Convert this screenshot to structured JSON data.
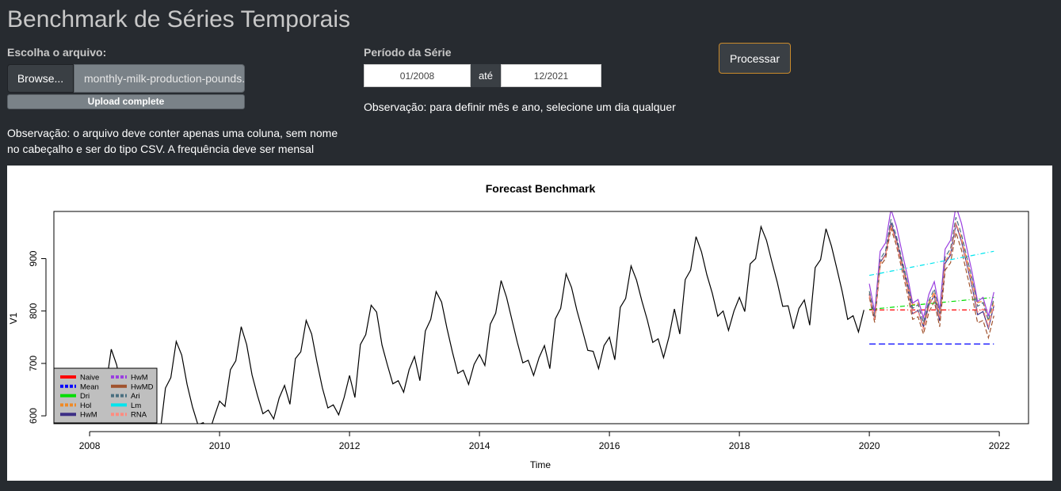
{
  "app": {
    "title": "Benchmark de Séries Temporais"
  },
  "upload": {
    "label": "Escolha o arquivo:",
    "browse_label": "Browse...",
    "file_name": "monthly-milk-production-pounds.csv",
    "progress_text": "Upload complete",
    "progress_fraction": 1.0,
    "note_line1": "Observação: o arquivo deve conter apenas uma coluna, sem nome",
    "note_line2": "no cabeçalho e ser do tipo CSV. A frequência deve ser mensal"
  },
  "period": {
    "label": "Período da Série",
    "start": "01/2008",
    "separator": "até",
    "end": "12/2021",
    "note": "Observação: para definir mês e ano, selecione um dia qualquer"
  },
  "actions": {
    "process_label": "Processar"
  },
  "colors": {
    "background": "#272b30",
    "panel": "#ffffff",
    "button_border": "#c98a2b",
    "naive": "#ff0000",
    "mean": "#0000ff",
    "drift": "#00dd00",
    "holt": "#f08a24",
    "hw": "#3d2f85",
    "hwm": "#9a3fe0",
    "hwmd": "#a0522d",
    "arima": "#4a6f80",
    "lm": "#00e5ee",
    "rna": "#ff8c80"
  },
  "chart_data": {
    "type": "line",
    "title": "Forecast Benchmark",
    "xlabel": "Time",
    "ylabel": "V1",
    "xlim": [
      2007.45,
      2022.45
    ],
    "ylim": [
      585,
      990
    ],
    "x_ticks": [
      2008,
      2010,
      2012,
      2014,
      2016,
      2018,
      2020,
      2022
    ],
    "y_ticks": [
      600,
      700,
      800,
      900
    ],
    "grid": false,
    "legend_position": "bottom-left",
    "start": 2008.0,
    "frequency": 12,
    "historical": [
      589,
      561,
      640,
      656,
      727,
      697,
      640,
      599,
      568,
      577,
      553,
      582,
      600,
      566,
      653,
      673,
      742,
      716,
      660,
      617,
      583,
      587,
      565,
      598,
      628,
      618,
      688,
      705,
      770,
      736,
      678,
      639,
      604,
      611,
      594,
      634,
      658,
      622,
      709,
      722,
      782,
      756,
      702,
      653,
      615,
      621,
      602,
      635,
      677,
      635,
      736,
      755,
      811,
      798,
      735,
      697,
      661,
      667,
      645,
      688,
      713,
      667,
      762,
      784,
      837,
      817,
      767,
      722,
      681,
      687,
      660,
      698,
      717,
      696,
      775,
      796,
      858,
      826,
      783,
      740,
      701,
      706,
      677,
      711,
      734,
      690,
      785,
      805,
      871,
      845,
      801,
      764,
      725,
      723,
      690,
      734,
      750,
      707,
      807,
      824,
      886,
      859,
      819,
      783,
      740,
      747,
      711,
      751,
      804,
      756,
      860,
      878,
      942,
      913,
      869,
      834,
      790,
      800,
      763,
      800,
      826,
      799,
      890,
      900,
      961,
      935,
      894,
      855,
      809,
      810,
      766,
      805,
      821,
      773,
      883,
      898,
      957,
      924,
      881,
      837,
      784,
      791,
      760,
      802
    ],
    "forecast_x": [
      2020.0,
      2020.0833,
      2020.1667,
      2020.25,
      2020.3333,
      2020.4167,
      2020.5,
      2020.5833,
      2020.6667,
      2020.75,
      2020.8333,
      2020.9167,
      2021.0,
      2021.0833,
      2021.1667,
      2021.25,
      2021.3333,
      2021.4167,
      2021.5,
      2021.5833,
      2021.6667,
      2021.75,
      2021.8333,
      2021.9167
    ],
    "series": [
      {
        "name": "Naive",
        "color": "#ff0000",
        "dash": "6,3,1,3",
        "values": [
          802,
          802,
          802,
          802,
          802,
          802,
          802,
          802,
          802,
          802,
          802,
          802,
          802,
          802,
          802,
          802,
          802,
          802,
          802,
          802,
          802,
          802,
          802,
          802
        ]
      },
      {
        "name": "Mean",
        "color": "#0000ff",
        "dash": "8,4",
        "values": [
          737,
          737,
          737,
          737,
          737,
          737,
          737,
          737,
          737,
          737,
          737,
          737,
          737,
          737,
          737,
          737,
          737,
          737,
          737,
          737,
          737,
          737,
          737,
          737
        ]
      },
      {
        "name": "Dri",
        "color": "#00dd00",
        "dash": "6,3,1,3",
        "values": [
          803,
          804,
          805,
          806,
          807,
          808,
          809,
          810,
          811,
          812,
          813,
          814,
          815,
          816,
          817,
          818,
          819,
          820,
          821,
          822,
          823,
          824,
          825,
          826
        ]
      },
      {
        "name": "Hol",
        "color": "#f08a24",
        "dash": "6,3",
        "values": [
          834,
          786,
          890,
          908,
          962,
          936,
          895,
          854,
          812,
          815,
          776,
          816,
          836,
          790,
          895,
          912,
          967,
          940,
          899,
          858,
          816,
          819,
          780,
          820
        ]
      },
      {
        "name": "HwM",
        "color": "#3d2f85",
        "dash": "",
        "values": [
          832,
          783,
          893,
          908,
          968,
          936,
          891,
          848,
          795,
          801,
          769,
          812,
          829,
          781,
          891,
          907,
          966,
          933,
          889,
          846,
          793,
          799,
          767,
          810
        ]
      },
      {
        "name": "HwM",
        "color": "#9a3fe0",
        "dash": "",
        "values": [
          852,
          798,
          914,
          930,
          994,
          962,
          914,
          869,
          815,
          822,
          787,
          832,
          856,
          802,
          918,
          935,
          1000,
          968,
          920,
          873,
          818,
          826,
          790,
          836
        ]
      },
      {
        "name": "HwMD",
        "color": "#a0522d",
        "dash": "6,3",
        "values": [
          826,
          778,
          886,
          900,
          958,
          925,
          880,
          835,
          784,
          789,
          756,
          798,
          818,
          770,
          878,
          892,
          950,
          917,
          872,
          828,
          777,
          782,
          749,
          791
        ]
      },
      {
        "name": "Ari",
        "color": "#4a6f80",
        "dash": "6,3",
        "values": [
          838,
          790,
          899,
          915,
          975,
          943,
          899,
          857,
          805,
          812,
          778,
          820,
          842,
          794,
          903,
          919,
          979,
          947,
          903,
          861,
          809,
          816,
          782,
          824
        ]
      },
      {
        "name": "Lm",
        "color": "#00e5ee",
        "dash": "6,3,1,3",
        "values": [
          868,
          870,
          872,
          874,
          876,
          878,
          880,
          882,
          884,
          886,
          888,
          890,
          892,
          894,
          896,
          898,
          900,
          902,
          904,
          906,
          908,
          910,
          912,
          914
        ]
      },
      {
        "name": "RNA",
        "color": "#ff8c80",
        "dash": "6,3",
        "values": [
          830,
          784,
          892,
          906,
          964,
          932,
          888,
          846,
          794,
          800,
          766,
          808,
          832,
          786,
          894,
          910,
          968,
          936,
          892,
          850,
          798,
          804,
          770,
          812
        ]
      }
    ],
    "legend": [
      {
        "name": "Naive",
        "color": "#ff0000",
        "dashed": false
      },
      {
        "name": "Mean",
        "color": "#0000ff",
        "dashed": true
      },
      {
        "name": "Dri",
        "color": "#00dd00",
        "dashed": false
      },
      {
        "name": "Hol",
        "color": "#f08a24",
        "dashed": true
      },
      {
        "name": "HwM",
        "color": "#3d2f85",
        "dashed": false
      },
      {
        "name": "HwM",
        "color": "#9a3fe0",
        "dashed": true
      },
      {
        "name": "HwMD",
        "color": "#a0522d",
        "dashed": false
      },
      {
        "name": "Ari",
        "color": "#4a6f80",
        "dashed": true
      },
      {
        "name": "Lm",
        "color": "#00e5ee",
        "dashed": false
      },
      {
        "name": "RNA",
        "color": "#ff8c80",
        "dashed": true
      }
    ]
  }
}
